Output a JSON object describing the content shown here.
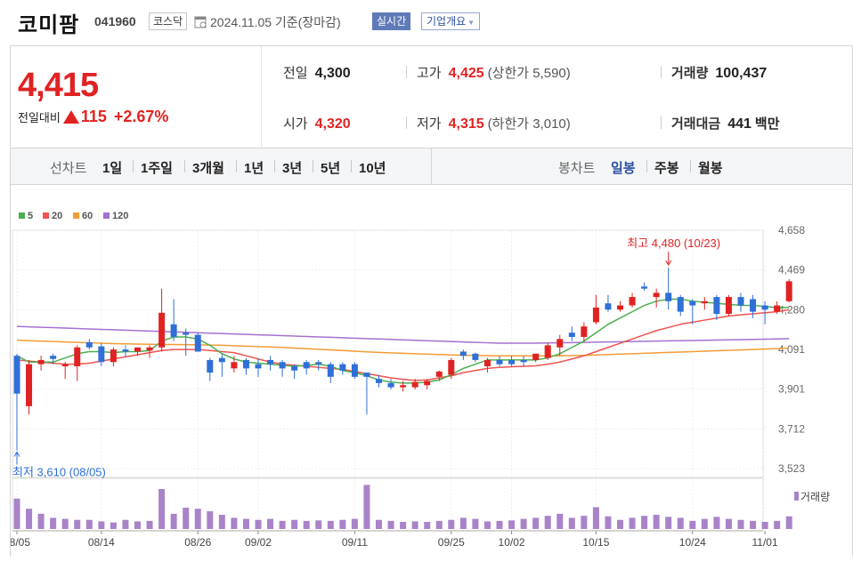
{
  "header": {
    "name": "코미팜",
    "code": "041960",
    "market": "코스닥",
    "date_text": "2024.11.05  기준(장마감)",
    "realtime_label": "실시간",
    "overview_label": "기업개요"
  },
  "summary": {
    "price": "4,415",
    "change_label": "전일대비",
    "change_amount": "115",
    "change_pct": "+2.67%",
    "prev_label": "전일",
    "prev_value": "4,300",
    "high_label": "고가",
    "high_value": "4,425",
    "upper_label": "상한가",
    "upper_value": "5,590",
    "volume_label": "거래량",
    "volume_value": "100,437",
    "open_label": "시가",
    "open_value": "4,320",
    "low_label": "저가",
    "low_value": "4,315",
    "lower_label": "하한가",
    "lower_value": "3,010",
    "amount_label": "거래대금",
    "amount_value": "441",
    "amount_unit": "백만"
  },
  "periods": {
    "line_label": "선차트",
    "items": [
      "1일",
      "1주일",
      "3개월",
      "1년",
      "3년",
      "5년",
      "10년"
    ],
    "candle_label": "봉차트",
    "candle_items": [
      "일봉",
      "주봉",
      "월봉"
    ],
    "selected_candle": "일봉"
  },
  "colors": {
    "up": "#e12222",
    "down": "#2f6fd8",
    "ma5": "#4caf50",
    "ma20": "#ef5350",
    "ma60": "#f39c34",
    "ma120": "#a471d1",
    "volume": "#a983c9"
  },
  "chart_data": {
    "type": "candlestick",
    "legend": [
      "5",
      "20",
      "60",
      "120"
    ],
    "y_ticks": [
      "4,658",
      "4,469",
      "4,280",
      "4,091",
      "3,901",
      "3,712",
      "3,523"
    ],
    "ylim": [
      3523,
      4658
    ],
    "x_labels": [
      {
        "i": 0,
        "label": "08/05"
      },
      {
        "i": 7,
        "label": "08/14"
      },
      {
        "i": 15,
        "label": "08/26"
      },
      {
        "i": 20,
        "label": "09/02"
      },
      {
        "i": 28,
        "label": "09/11"
      },
      {
        "i": 36,
        "label": "09/25"
      },
      {
        "i": 41,
        "label": "10/02"
      },
      {
        "i": 48,
        "label": "10/15"
      },
      {
        "i": 56,
        "label": "10/24"
      },
      {
        "i": 62,
        "label": "11/01"
      }
    ],
    "candles": [
      [
        4060,
        3610,
        4070,
        3880
      ],
      [
        3820,
        3780,
        4040,
        4020
      ],
      [
        4020,
        3990,
        4060,
        4040
      ],
      [
        4060,
        4020,
        4070,
        4045
      ],
      [
        4010,
        3950,
        4030,
        4020
      ],
      [
        4010,
        3940,
        4110,
        4100
      ],
      [
        4125,
        4090,
        4140,
        4100
      ],
      [
        4105,
        4010,
        4120,
        4030
      ],
      [
        4030,
        4010,
        4100,
        4090
      ],
      [
        4090,
        4055,
        4110,
        4080
      ],
      [
        4080,
        4060,
        4100,
        4100
      ],
      [
        4085,
        4050,
        4110,
        4100
      ],
      [
        4100,
        4080,
        4380,
        4265
      ],
      [
        4210,
        4130,
        4330,
        4150
      ],
      [
        4170,
        4060,
        4190,
        4160
      ],
      [
        4160,
        4080,
        4170,
        4080
      ],
      [
        4040,
        3940,
        4050,
        3980
      ],
      [
        4050,
        3960,
        4070,
        4030
      ],
      [
        4000,
        3980,
        4060,
        4030
      ],
      [
        4040,
        3970,
        4050,
        4000
      ],
      [
        4020,
        3960,
        4050,
        4000
      ],
      [
        4040,
        3990,
        4060,
        4020
      ],
      [
        4030,
        3960,
        4040,
        4000
      ],
      [
        4010,
        3950,
        4020,
        3990
      ],
      [
        4030,
        3970,
        4040,
        4000
      ],
      [
        4030,
        3990,
        4040,
        4020
      ],
      [
        4020,
        3930,
        4030,
        3960
      ],
      [
        4020,
        3970,
        4030,
        3990
      ],
      [
        4020,
        3950,
        4030,
        3960
      ],
      [
        3980,
        3780,
        3980,
        3960
      ],
      [
        3950,
        3910,
        3970,
        3930
      ],
      [
        3930,
        3900,
        3950,
        3910
      ],
      [
        3910,
        3890,
        3940,
        3920
      ],
      [
        3910,
        3900,
        3950,
        3935
      ],
      [
        3920,
        3900,
        3950,
        3940
      ],
      [
        3960,
        3940,
        3990,
        3985
      ],
      [
        3970,
        3950,
        4050,
        4040
      ],
      [
        4080,
        4040,
        4090,
        4060
      ],
      [
        4070,
        4030,
        4075,
        4040
      ],
      [
        4010,
        3980,
        4050,
        4040
      ],
      [
        4040,
        4010,
        4060,
        4020
      ],
      [
        4040,
        4010,
        4060,
        4020
      ],
      [
        4040,
        4010,
        4060,
        4030
      ],
      [
        4040,
        4030,
        4070,
        4070
      ],
      [
        4050,
        4040,
        4120,
        4110
      ],
      [
        4100,
        4060,
        4160,
        4140
      ],
      [
        4170,
        4130,
        4200,
        4150
      ],
      [
        4150,
        4130,
        4220,
        4200
      ],
      [
        4220,
        4210,
        4350,
        4290
      ],
      [
        4310,
        4270,
        4350,
        4280
      ],
      [
        4280,
        4270,
        4320,
        4300
      ],
      [
        4300,
        4290,
        4360,
        4340
      ],
      [
        4390,
        4370,
        4410,
        4380
      ],
      [
        4340,
        4290,
        4380,
        4360
      ],
      [
        4360,
        4280,
        4480,
        4320
      ],
      [
        4340,
        4250,
        4350,
        4270
      ],
      [
        4320,
        4210,
        4330,
        4300
      ],
      [
        4310,
        4280,
        4340,
        4320
      ],
      [
        4340,
        4230,
        4350,
        4260
      ],
      [
        4260,
        4250,
        4350,
        4340
      ],
      [
        4340,
        4270,
        4360,
        4300
      ],
      [
        4330,
        4240,
        4350,
        4270
      ],
      [
        4300,
        4210,
        4320,
        4280
      ],
      [
        4270,
        4260,
        4320,
        4300
      ],
      [
        4320,
        4315,
        4425,
        4415
      ]
    ],
    "ma5": [
      4060,
      4030,
      4030,
      4030,
      4050,
      4070,
      4080,
      4080,
      4075,
      4080,
      4080,
      4085,
      4130,
      4150,
      4150,
      4140,
      4110,
      4070,
      4045,
      4030,
      4025,
      4020,
      4015,
      4010,
      4015,
      4020,
      4010,
      3990,
      3980,
      3965,
      3945,
      3935,
      3930,
      3930,
      3935,
      3945,
      3970,
      4000,
      4020,
      4040,
      4040,
      4040,
      4040,
      4040,
      4050,
      4070,
      4100,
      4130,
      4170,
      4210,
      4240,
      4270,
      4300,
      4320,
      4330,
      4330,
      4320,
      4315,
      4310,
      4305,
      4300,
      4300,
      4295,
      4290,
      4290
    ],
    "ma20": [
      4040,
      4035,
      4030,
      4025,
      4020,
      4020,
      4025,
      4035,
      4045,
      4055,
      4065,
      4075,
      4085,
      4090,
      4090,
      4090,
      4085,
      4080,
      4075,
      4060,
      4045,
      4030,
      4020,
      4015,
      4010,
      4005,
      4000,
      3995,
      3985,
      3975,
      3965,
      3955,
      3948,
      3943,
      3945,
      3955,
      3965,
      3980,
      3990,
      4000,
      4005,
      4008,
      4010,
      4012,
      4020,
      4030,
      4045,
      4060,
      4080,
      4100,
      4120,
      4140,
      4160,
      4180,
      4195,
      4210,
      4220,
      4230,
      4240,
      4250,
      4255,
      4260,
      4265,
      4270,
      4280
    ],
    "ma60": [
      4135,
      4132,
      4130,
      4128,
      4126,
      4124,
      4122,
      4120,
      4118,
      4117,
      4116,
      4115,
      4114,
      4114,
      4113,
      4112,
      4111,
      4110,
      4108,
      4106,
      4104,
      4102,
      4100,
      4097,
      4094,
      4091,
      4088,
      4085,
      4082,
      4079,
      4076,
      4074,
      4072,
      4070,
      4068,
      4066,
      4064,
      4063,
      4062,
      4061,
      4060,
      4060,
      4060,
      4060,
      4060,
      4060,
      4061,
      4062,
      4064,
      4066,
      4068,
      4070,
      4072,
      4074,
      4076,
      4078,
      4080,
      4082,
      4084,
      4086,
      4088,
      4090,
      4092,
      4094,
      4097
    ],
    "ma120": [
      4200,
      4198,
      4196,
      4194,
      4192,
      4190,
      4188,
      4186,
      4184,
      4182,
      4180,
      4178,
      4176,
      4174,
      4172,
      4170,
      4168,
      4166,
      4164,
      4162,
      4160,
      4158,
      4156,
      4154,
      4152,
      4150,
      4148,
      4146,
      4144,
      4142,
      4140,
      4138,
      4136,
      4134,
      4132,
      4130,
      4128,
      4126,
      4124,
      4122,
      4120,
      4120,
      4120,
      4120,
      4121,
      4122,
      4123,
      4124,
      4125,
      4126,
      4127,
      4128,
      4129,
      4130,
      4131,
      4132,
      4133,
      4134,
      4135,
      4136,
      4137,
      4138,
      4139,
      4140,
      4142
    ],
    "volume": [
      60,
      40,
      30,
      22,
      20,
      18,
      18,
      15,
      13,
      18,
      15,
      16,
      79,
      30,
      42,
      40,
      35,
      28,
      22,
      20,
      18,
      20,
      16,
      18,
      16,
      17,
      16,
      18,
      20,
      87,
      18,
      16,
      14,
      15,
      14,
      16,
      18,
      22,
      20,
      15,
      16,
      17,
      20,
      22,
      26,
      30,
      22,
      26,
      43,
      25,
      18,
      22,
      26,
      28,
      24,
      22,
      16,
      20,
      24,
      20,
      18,
      16,
      14,
      16,
      25
    ],
    "volume_label": "거래량",
    "annotations": {
      "high_text": "최고 4,480 (10/23)",
      "high_index": 54,
      "low_text": "최저 3,610 (08/05)",
      "low_index": 0
    }
  }
}
